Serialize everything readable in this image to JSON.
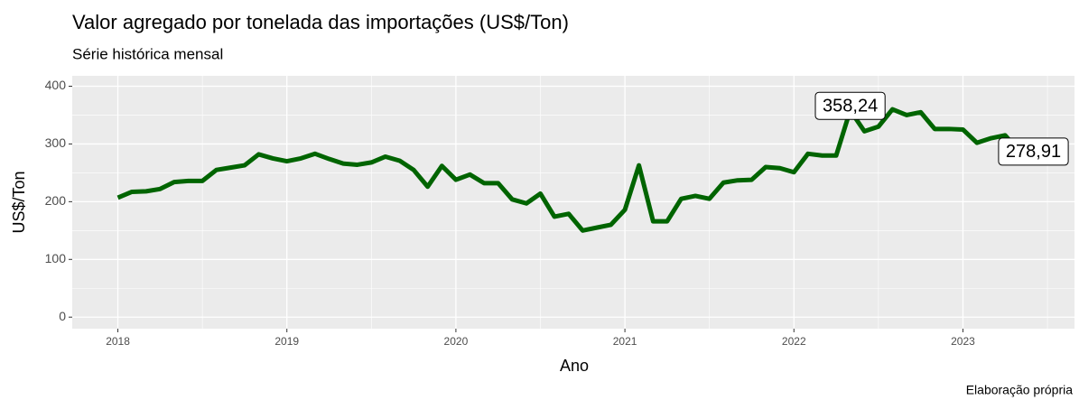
{
  "chart_data": {
    "type": "line",
    "title": "Valor agregado por tonelada das importações (US$/Ton)",
    "subtitle": "Série histórica mensal",
    "x_label": "Ano",
    "y_label": "US$/Ton",
    "caption": "Elaboração própria",
    "x": [
      2018,
      2018.083,
      2018.167,
      2018.25,
      2018.333,
      2018.417,
      2018.5,
      2018.583,
      2018.667,
      2018.75,
      2018.833,
      2018.917,
      2019,
      2019.083,
      2019.167,
      2019.25,
      2019.333,
      2019.417,
      2019.5,
      2019.583,
      2019.667,
      2019.75,
      2019.833,
      2019.917,
      2020,
      2020.083,
      2020.167,
      2020.25,
      2020.333,
      2020.417,
      2020.5,
      2020.583,
      2020.667,
      2020.75,
      2020.833,
      2020.917,
      2021,
      2021.083,
      2021.167,
      2021.25,
      2021.333,
      2021.417,
      2021.5,
      2021.583,
      2021.667,
      2021.75,
      2021.833,
      2021.917,
      2022,
      2022.083,
      2022.167,
      2022.25,
      2022.333,
      2022.417,
      2022.5,
      2022.583,
      2022.667,
      2022.75,
      2022.833,
      2022.917,
      2023,
      2023.083,
      2023.167,
      2023.25,
      2023.333,
      2023.417
    ],
    "series": [
      {
        "name": "US$/Ton",
        "color": "#006400",
        "values": [
          207,
          217,
          218,
          222,
          234,
          236,
          236,
          255,
          259,
          263,
          282,
          275,
          270,
          275,
          283,
          274,
          266,
          264,
          268,
          278,
          271,
          255,
          226,
          262,
          238,
          247,
          232,
          232,
          204,
          197,
          214,
          174,
          179,
          150,
          155,
          160,
          186,
          263,
          166,
          166,
          205,
          210,
          205,
          233,
          237,
          238,
          260,
          258,
          251,
          283,
          280,
          280,
          358.24,
          322,
          330,
          360,
          350,
          355,
          326,
          326,
          325,
          302,
          310,
          315,
          287,
          278.91
        ],
        "value_labels": [
          null,
          null,
          null,
          null,
          null,
          null,
          null,
          null,
          null,
          null,
          null,
          null,
          null,
          null,
          null,
          null,
          null,
          null,
          null,
          null,
          null,
          null,
          null,
          null,
          null,
          null,
          null,
          null,
          null,
          null,
          null,
          null,
          null,
          null,
          null,
          null,
          null,
          null,
          null,
          null,
          null,
          null,
          null,
          null,
          null,
          null,
          null,
          null,
          null,
          null,
          null,
          null,
          "358,24",
          null,
          null,
          null,
          null,
          null,
          null,
          null,
          null,
          null,
          null,
          null,
          null,
          "278,91"
        ]
      }
    ],
    "xlim": [
      2017.73,
      2023.66
    ],
    "xticks": [
      2018,
      2019,
      2020,
      2021,
      2022,
      2023
    ],
    "ylim": [
      -20,
      418
    ],
    "yticks": [
      0,
      100,
      200,
      300,
      400
    ],
    "grid": true
  }
}
